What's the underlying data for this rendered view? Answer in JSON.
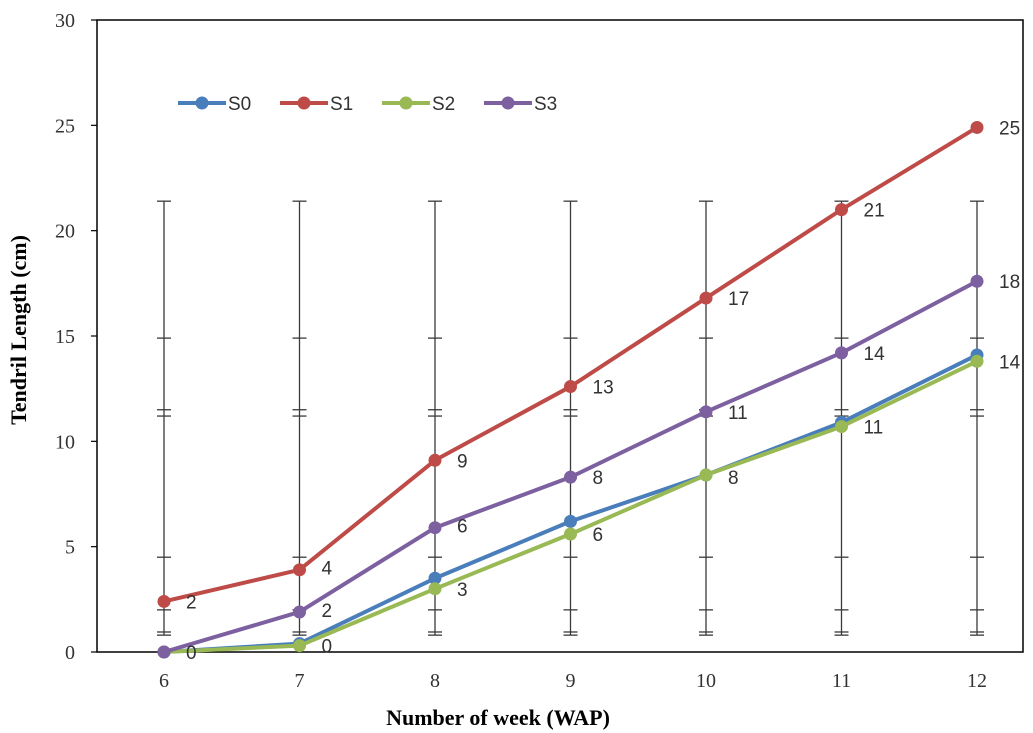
{
  "chart_data": {
    "type": "line",
    "xlabel": "Number of week (WAP)",
    "ylabel": "Tendril Length (cm)",
    "categories": [
      "6",
      "7",
      "8",
      "9",
      "10",
      "11",
      "12"
    ],
    "ylim": [
      0,
      30
    ],
    "yticks": [
      "0",
      "5",
      "10",
      "15",
      "20",
      "25",
      "30"
    ],
    "grid": false,
    "legend": "top-left",
    "series": [
      {
        "name": "S0",
        "color": "#4A7EBB",
        "values": [
          0,
          0.4,
          3.5,
          6.2,
          8.4,
          10.9,
          14.1
        ]
      },
      {
        "name": "S1",
        "color": "#BE4B48",
        "values": [
          2.4,
          3.9,
          9.1,
          12.6,
          16.8,
          21.0,
          24.9
        ]
      },
      {
        "name": "S2",
        "color": "#98B954",
        "values": [
          0,
          0.3,
          3.0,
          5.6,
          8.4,
          10.7,
          13.8
        ]
      },
      {
        "name": "S3",
        "color": "#7D60A0",
        "values": [
          0,
          1.9,
          5.9,
          8.3,
          11.4,
          14.2,
          17.6
        ]
      }
    ],
    "data_labels": [
      {
        "label": "2",
        "x_index": 0,
        "y": 2.4
      },
      {
        "label": "0",
        "x_index": 0,
        "y": 0
      },
      {
        "label": "4",
        "x_index": 1,
        "y": 4.0
      },
      {
        "label": "2",
        "x_index": 1,
        "y": 2.0
      },
      {
        "label": "0",
        "x_index": 1,
        "y": 0.3
      },
      {
        "label": "9",
        "x_index": 2,
        "y": 9.1
      },
      {
        "label": "6",
        "x_index": 2,
        "y": 6.0
      },
      {
        "label": "3",
        "x_index": 2,
        "y": 3.0
      },
      {
        "label": "13",
        "x_index": 3,
        "y": 12.6
      },
      {
        "label": "8",
        "x_index": 3,
        "y": 8.3
      },
      {
        "label": "6",
        "x_index": 3,
        "y": 5.6
      },
      {
        "label": "17",
        "x_index": 4,
        "y": 16.8
      },
      {
        "label": "11",
        "x_index": 4,
        "y": 11.4
      },
      {
        "label": "8",
        "x_index": 4,
        "y": 8.3
      },
      {
        "label": "21",
        "x_index": 5,
        "y": 21.0
      },
      {
        "label": "14",
        "x_index": 5,
        "y": 14.2
      },
      {
        "label": "11",
        "x_index": 5,
        "y": 10.7
      },
      {
        "label": "25",
        "x_index": 6,
        "y": 24.9
      },
      {
        "label": "18",
        "x_index": 6,
        "y": 17.6
      },
      {
        "label": "14",
        "x_index": 6,
        "y": 13.8
      }
    ],
    "error_bar_ends": [
      0.8,
      0.95,
      2.0,
      4.5,
      11.2,
      11.5,
      14.9,
      21.4
    ]
  }
}
